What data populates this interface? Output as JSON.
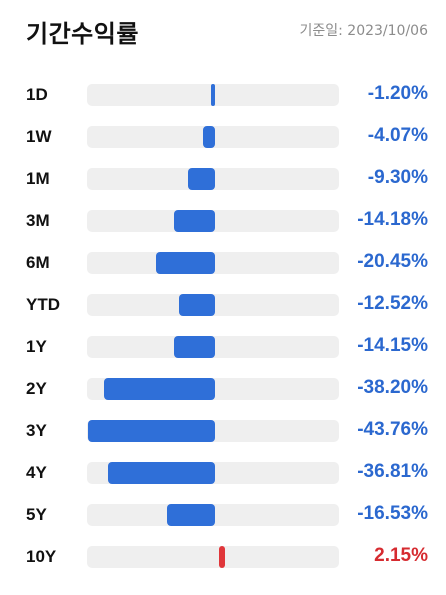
{
  "header": {
    "title": "기간수익률",
    "basis_date": "기준일: 2023/10/06"
  },
  "colors": {
    "negative": "#2f6fd8",
    "positive": "#e0363a",
    "track": "#efefef"
  },
  "chart_data": {
    "type": "bar",
    "categories": [
      "1D",
      "1W",
      "1M",
      "3M",
      "6M",
      "YTD",
      "1Y",
      "2Y",
      "3Y",
      "4Y",
      "5Y",
      "10Y"
    ],
    "values": [
      -1.2,
      -4.07,
      -9.3,
      -14.18,
      -20.45,
      -12.52,
      -14.15,
      -38.2,
      -43.76,
      -36.81,
      -16.53,
      2.15
    ],
    "value_labels": [
      "-1.20%",
      "-4.07%",
      "-9.30%",
      "-14.18%",
      "-20.45%",
      "-12.52%",
      "-14.15%",
      "-38.20%",
      "-43.76%",
      "-36.81%",
      "-16.53%",
      "2.15%"
    ]
  }
}
